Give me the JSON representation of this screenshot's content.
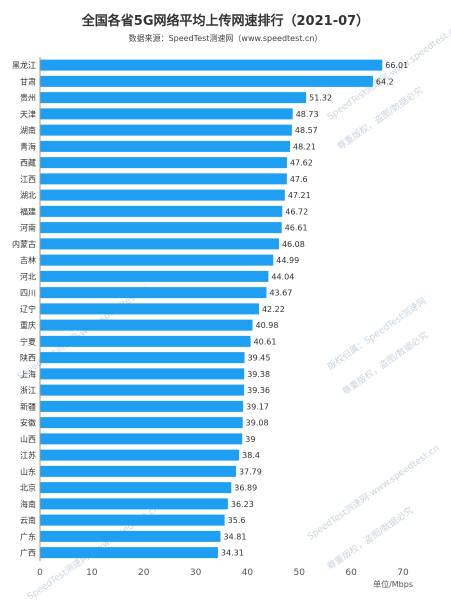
{
  "chart_data": {
    "type": "bar",
    "orientation": "horizontal",
    "title": "全国各省5G网络平均上传网速排行（2021-07）",
    "subtitle": "数据来源：SpeedTest测速网（www.speedtest.cn）",
    "categories": [
      "黑龙江",
      "甘肃",
      "贵州",
      "天津",
      "湖南",
      "青海",
      "西藏",
      "江西",
      "湖北",
      "福建",
      "河南",
      "内蒙古",
      "吉林",
      "河北",
      "四川",
      "辽宁",
      "重庆",
      "宁夏",
      "陕西",
      "上海",
      "浙江",
      "新疆",
      "安徽",
      "山西",
      "江苏",
      "山东",
      "北京",
      "海南",
      "云南",
      "广东",
      "广西"
    ],
    "values": [
      66.01,
      64.2,
      51.32,
      48.73,
      48.57,
      48.21,
      47.62,
      47.6,
      47.21,
      46.72,
      46.61,
      46.08,
      44.99,
      44.04,
      43.67,
      42.22,
      40.98,
      40.61,
      39.45,
      39.38,
      39.36,
      39.17,
      39.08,
      39,
      38.4,
      37.79,
      36.89,
      36.23,
      35.6,
      34.81,
      34.31
    ],
    "value_labels": [
      "66.01",
      "64.2",
      "51.32",
      "48.73",
      "48.57",
      "48.21",
      "47.62",
      "47.6",
      "47.21",
      "46.72",
      "46.61",
      "46.08",
      "44.99",
      "44.04",
      "43.67",
      "42.22",
      "40.98",
      "40.61",
      "39.45",
      "39.38",
      "39.36",
      "39.17",
      "39.08",
      "39",
      "38.4",
      "37.79",
      "36.89",
      "36.23",
      "35.6",
      "34.81",
      "34.31"
    ],
    "xlim": [
      0,
      70
    ],
    "xticks": [
      "0",
      "10",
      "20",
      "30",
      "40",
      "50",
      "60",
      "70"
    ],
    "xlabel": "单位/Mbps",
    "grid": false,
    "bar_color": "#1e9ff2"
  },
  "watermark": {
    "line1": "SpeedTest测速网-www.speedtest.cn",
    "line2": "版权归属：SpeedTest测速网",
    "line3": "尊重版权，盗图/数据必究"
  }
}
